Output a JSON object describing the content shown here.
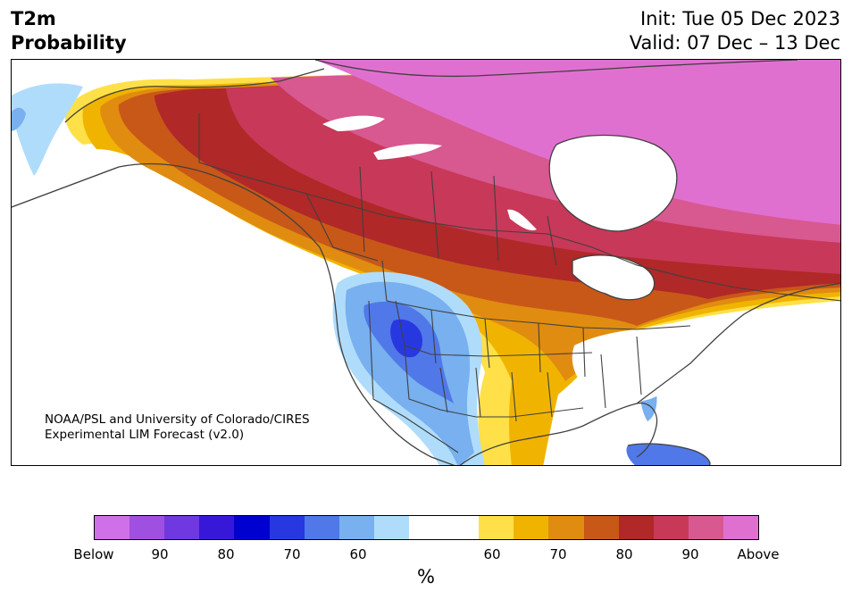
{
  "header": {
    "title_line1": "T2m",
    "title_line2": "Probability",
    "init": "Init: Tue 05 Dec 2023",
    "valid": "Valid: 07 Dec – 13 Dec"
  },
  "map": {
    "credit_line1": "NOAA/PSL and University of Colorado/CIRES",
    "credit_line2": "Experimental LIM Forecast (v2.0)"
  },
  "colorbar": {
    "unit": "%",
    "tick_labels": [
      "Below",
      "90",
      "80",
      "70",
      "60",
      "60",
      "70",
      "80",
      "90",
      "Above"
    ],
    "below_colors": [
      "#d070e8",
      "#9f50e0",
      "#7038e0",
      "#3818d8",
      "#0000d0",
      "#2838e0",
      "#5078e8",
      "#78b0f0",
      "#b0dcfc"
    ],
    "neutral_color": "#ffffff",
    "above_colors": [
      "#ffe048",
      "#f0b400",
      "#e08c10",
      "#c85818",
      "#b02828",
      "#c83858",
      "#d85890",
      "#e070d0"
    ]
  }
}
